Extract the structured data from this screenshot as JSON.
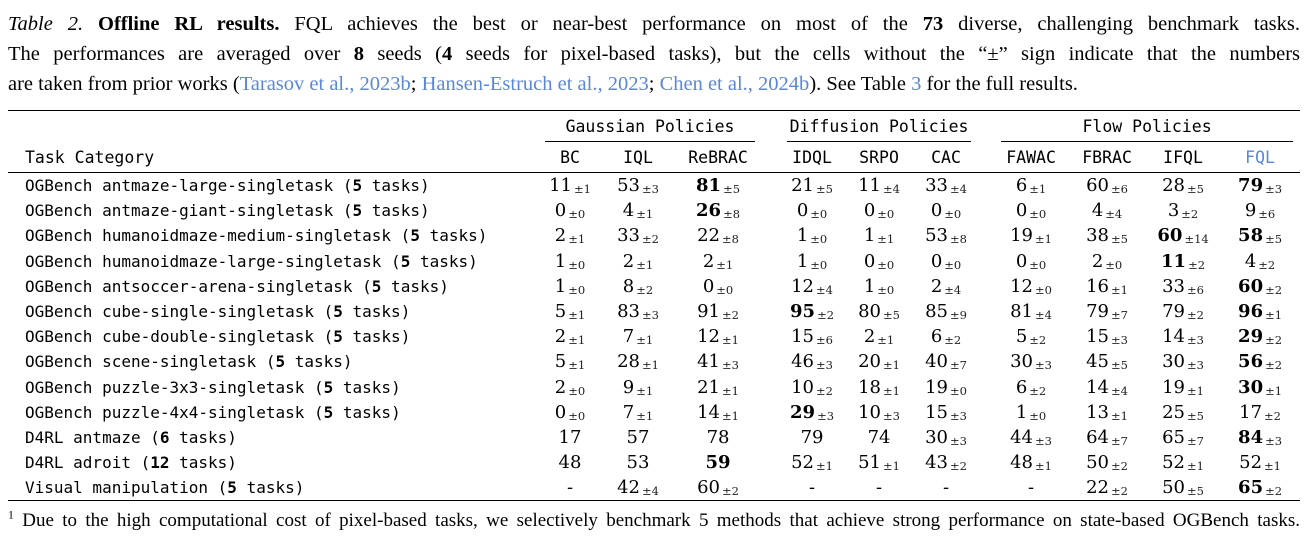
{
  "colors": {
    "link_blue": "#5b87d7",
    "rule": "#000000",
    "pm_text": "#222222"
  },
  "caption": {
    "lines": [
      [
        {
          "t": "Table 2. ",
          "s": "i"
        },
        {
          "t": "Offline RL results. ",
          "s": "b"
        },
        {
          "t": "FQL achieves the best or near-best performance on most of the ",
          "s": ""
        },
        {
          "t": "73",
          "s": "b"
        },
        {
          "t": " diverse, challenging benchmark tasks.",
          "s": ""
        }
      ],
      [
        {
          "t": "The performances are averaged over ",
          "s": ""
        },
        {
          "t": "8",
          "s": "b"
        },
        {
          "t": " seeds (",
          "s": ""
        },
        {
          "t": "4",
          "s": "b"
        },
        {
          "t": " seeds for pixel-based tasks), but the cells without the “±” sign indicate that the numbers",
          "s": ""
        }
      ],
      [
        {
          "t": "are taken from prior works (",
          "s": ""
        },
        {
          "t": "Tarasov et al., 2023b",
          "s": "link"
        },
        {
          "t": "; ",
          "s": ""
        },
        {
          "t": "Hansen-Estruch et al., 2023",
          "s": "link"
        },
        {
          "t": "; ",
          "s": ""
        },
        {
          "t": "Chen et al., 2024b",
          "s": "link"
        },
        {
          "t": "). See Table ",
          "s": ""
        },
        {
          "t": "3",
          "s": "link"
        },
        {
          "t": " for the full results.",
          "s": ""
        }
      ]
    ]
  },
  "table": {
    "task_header": "Task Category",
    "groups": [
      {
        "label": "Gaussian Policies",
        "columns": [
          {
            "label": "BC"
          },
          {
            "label": "IQL"
          },
          {
            "label": "ReBRAC"
          }
        ]
      },
      {
        "label": "Diffusion Policies",
        "columns": [
          {
            "label": "IDQL"
          },
          {
            "label": "SRPO"
          },
          {
            "label": "CAC"
          }
        ]
      },
      {
        "label": "Flow Policies",
        "columns": [
          {
            "label": "FAWAC"
          },
          {
            "label": "FBRAC"
          },
          {
            "label": "IFQL"
          },
          {
            "label": "FQL",
            "accent": true
          }
        ]
      }
    ],
    "rows": [
      {
        "name": "OGBench antmaze-large-singletask",
        "count": "5",
        "unit": "tasks",
        "cells": [
          {
            "v": "11",
            "pm": "1"
          },
          {
            "v": "53",
            "pm": "3"
          },
          {
            "v": "81",
            "pm": "5",
            "b": true
          },
          {
            "v": "21",
            "pm": "5"
          },
          {
            "v": "11",
            "pm": "4"
          },
          {
            "v": "33",
            "pm": "4"
          },
          {
            "v": "6",
            "pm": "1"
          },
          {
            "v": "60",
            "pm": "6"
          },
          {
            "v": "28",
            "pm": "5"
          },
          {
            "v": "79",
            "pm": "3",
            "b": true
          }
        ]
      },
      {
        "name": "OGBench antmaze-giant-singletask",
        "count": "5",
        "unit": "tasks",
        "cells": [
          {
            "v": "0",
            "pm": "0"
          },
          {
            "v": "4",
            "pm": "1"
          },
          {
            "v": "26",
            "pm": "8",
            "b": true
          },
          {
            "v": "0",
            "pm": "0"
          },
          {
            "v": "0",
            "pm": "0"
          },
          {
            "v": "0",
            "pm": "0"
          },
          {
            "v": "0",
            "pm": "0"
          },
          {
            "v": "4",
            "pm": "4"
          },
          {
            "v": "3",
            "pm": "2"
          },
          {
            "v": "9",
            "pm": "6"
          }
        ]
      },
      {
        "name": "OGBench humanoidmaze-medium-singletask",
        "count": "5",
        "unit": "tasks",
        "cells": [
          {
            "v": "2",
            "pm": "1"
          },
          {
            "v": "33",
            "pm": "2"
          },
          {
            "v": "22",
            "pm": "8"
          },
          {
            "v": "1",
            "pm": "0"
          },
          {
            "v": "1",
            "pm": "1"
          },
          {
            "v": "53",
            "pm": "8"
          },
          {
            "v": "19",
            "pm": "1"
          },
          {
            "v": "38",
            "pm": "5"
          },
          {
            "v": "60",
            "pm": "14",
            "b": true
          },
          {
            "v": "58",
            "pm": "5",
            "b": true
          }
        ]
      },
      {
        "name": "OGBench humanoidmaze-large-singletask",
        "count": "5",
        "unit": "tasks",
        "cells": [
          {
            "v": "1",
            "pm": "0"
          },
          {
            "v": "2",
            "pm": "1"
          },
          {
            "v": "2",
            "pm": "1"
          },
          {
            "v": "1",
            "pm": "0"
          },
          {
            "v": "0",
            "pm": "0"
          },
          {
            "v": "0",
            "pm": "0"
          },
          {
            "v": "0",
            "pm": "0"
          },
          {
            "v": "2",
            "pm": "0"
          },
          {
            "v": "11",
            "pm": "2",
            "b": true
          },
          {
            "v": "4",
            "pm": "2"
          }
        ]
      },
      {
        "name": "OGBench antsoccer-arena-singletask",
        "count": "5",
        "unit": "tasks",
        "cells": [
          {
            "v": "1",
            "pm": "0"
          },
          {
            "v": "8",
            "pm": "2"
          },
          {
            "v": "0",
            "pm": "0"
          },
          {
            "v": "12",
            "pm": "4"
          },
          {
            "v": "1",
            "pm": "0"
          },
          {
            "v": "2",
            "pm": "4"
          },
          {
            "v": "12",
            "pm": "0"
          },
          {
            "v": "16",
            "pm": "1"
          },
          {
            "v": "33",
            "pm": "6"
          },
          {
            "v": "60",
            "pm": "2",
            "b": true
          }
        ]
      },
      {
        "name": "OGBench cube-single-singletask",
        "count": "5",
        "unit": "tasks",
        "cells": [
          {
            "v": "5",
            "pm": "1"
          },
          {
            "v": "83",
            "pm": "3"
          },
          {
            "v": "91",
            "pm": "2"
          },
          {
            "v": "95",
            "pm": "2",
            "b": true
          },
          {
            "v": "80",
            "pm": "5"
          },
          {
            "v": "85",
            "pm": "9"
          },
          {
            "v": "81",
            "pm": "4"
          },
          {
            "v": "79",
            "pm": "7"
          },
          {
            "v": "79",
            "pm": "2"
          },
          {
            "v": "96",
            "pm": "1",
            "b": true
          }
        ]
      },
      {
        "name": "OGBench cube-double-singletask",
        "count": "5",
        "unit": "tasks",
        "cells": [
          {
            "v": "2",
            "pm": "1"
          },
          {
            "v": "7",
            "pm": "1"
          },
          {
            "v": "12",
            "pm": "1"
          },
          {
            "v": "15",
            "pm": "6"
          },
          {
            "v": "2",
            "pm": "1"
          },
          {
            "v": "6",
            "pm": "2"
          },
          {
            "v": "5",
            "pm": "2"
          },
          {
            "v": "15",
            "pm": "3"
          },
          {
            "v": "14",
            "pm": "3"
          },
          {
            "v": "29",
            "pm": "2",
            "b": true
          }
        ]
      },
      {
        "name": "OGBench scene-singletask",
        "count": "5",
        "unit": "tasks",
        "cells": [
          {
            "v": "5",
            "pm": "1"
          },
          {
            "v": "28",
            "pm": "1"
          },
          {
            "v": "41",
            "pm": "3"
          },
          {
            "v": "46",
            "pm": "3"
          },
          {
            "v": "20",
            "pm": "1"
          },
          {
            "v": "40",
            "pm": "7"
          },
          {
            "v": "30",
            "pm": "3"
          },
          {
            "v": "45",
            "pm": "5"
          },
          {
            "v": "30",
            "pm": "3"
          },
          {
            "v": "56",
            "pm": "2",
            "b": true
          }
        ]
      },
      {
        "name": "OGBench puzzle-3x3-singletask",
        "count": "5",
        "unit": "tasks",
        "cells": [
          {
            "v": "2",
            "pm": "0"
          },
          {
            "v": "9",
            "pm": "1"
          },
          {
            "v": "21",
            "pm": "1"
          },
          {
            "v": "10",
            "pm": "2"
          },
          {
            "v": "18",
            "pm": "1"
          },
          {
            "v": "19",
            "pm": "0"
          },
          {
            "v": "6",
            "pm": "2"
          },
          {
            "v": "14",
            "pm": "4"
          },
          {
            "v": "19",
            "pm": "1"
          },
          {
            "v": "30",
            "pm": "1",
            "b": true
          }
        ]
      },
      {
        "name": "OGBench puzzle-4x4-singletask",
        "count": "5",
        "unit": "tasks",
        "cells": [
          {
            "v": "0",
            "pm": "0"
          },
          {
            "v": "7",
            "pm": "1"
          },
          {
            "v": "14",
            "pm": "1"
          },
          {
            "v": "29",
            "pm": "3",
            "b": true
          },
          {
            "v": "10",
            "pm": "3"
          },
          {
            "v": "15",
            "pm": "3"
          },
          {
            "v": "1",
            "pm": "0"
          },
          {
            "v": "13",
            "pm": "1"
          },
          {
            "v": "25",
            "pm": "5"
          },
          {
            "v": "17",
            "pm": "2"
          }
        ]
      },
      {
        "name": "D4RL antmaze",
        "count": "6",
        "unit": "tasks",
        "cells": [
          {
            "v": "17"
          },
          {
            "v": "57"
          },
          {
            "v": "78"
          },
          {
            "v": "79"
          },
          {
            "v": "74"
          },
          {
            "v": "30",
            "pm": "3"
          },
          {
            "v": "44",
            "pm": "3"
          },
          {
            "v": "64",
            "pm": "7"
          },
          {
            "v": "65",
            "pm": "7"
          },
          {
            "v": "84",
            "pm": "3",
            "b": true
          }
        ]
      },
      {
        "name": "D4RL adroit",
        "count": "12",
        "unit": "tasks",
        "cells": [
          {
            "v": "48"
          },
          {
            "v": "53"
          },
          {
            "v": "59",
            "b": true
          },
          {
            "v": "52",
            "pm": "1"
          },
          {
            "v": "51",
            "pm": "1"
          },
          {
            "v": "43",
            "pm": "2"
          },
          {
            "v": "48",
            "pm": "1"
          },
          {
            "v": "50",
            "pm": "2"
          },
          {
            "v": "52",
            "pm": "1"
          },
          {
            "v": "52",
            "pm": "1"
          }
        ]
      },
      {
        "name": "Visual manipulation",
        "count": "5",
        "unit": "tasks",
        "cells": [
          {
            "v": "-"
          },
          {
            "v": "42",
            "pm": "4"
          },
          {
            "v": "60",
            "pm": "2"
          },
          {
            "v": "-"
          },
          {
            "v": "-"
          },
          {
            "v": "-"
          },
          {
            "v": "-"
          },
          {
            "v": "22",
            "pm": "2"
          },
          {
            "v": "50",
            "pm": "5"
          },
          {
            "v": "65",
            "pm": "2",
            "b": true
          }
        ]
      }
    ]
  },
  "footnote": {
    "segments": [
      {
        "t": "1",
        "s": "sup"
      },
      {
        "t": " Due to the high computational cost of pixel-based tasks, we selectively benchmark 5 methods that achieve strong performance on state-based OGBench tasks.",
        "s": ""
      }
    ]
  }
}
